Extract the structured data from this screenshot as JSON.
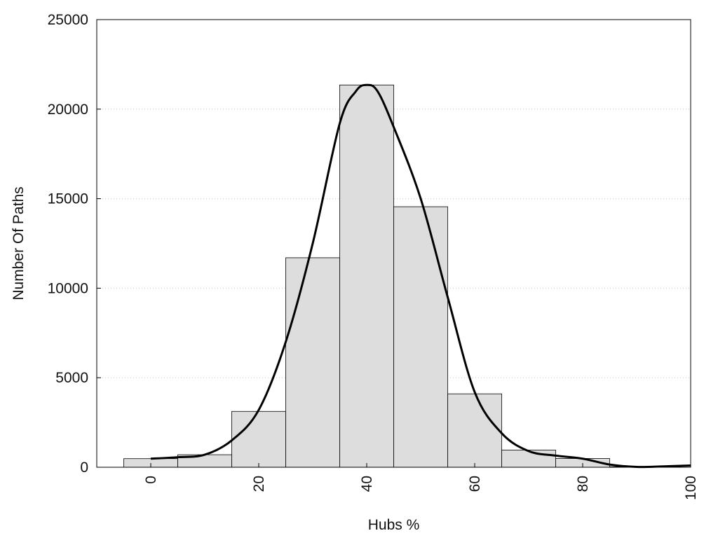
{
  "chart_data": {
    "type": "bar",
    "xlabel": "Hubs %",
    "ylabel": "Number Of Paths",
    "xlim": [
      -10,
      100
    ],
    "ylim": [
      0,
      25000
    ],
    "x_ticks": [
      0,
      20,
      40,
      60,
      80,
      100
    ],
    "y_ticks": [
      0,
      5000,
      10000,
      15000,
      20000,
      25000
    ],
    "grid": "horizontal dotted",
    "bin_width": 10,
    "bin_centers": [
      0,
      10,
      20,
      30,
      40,
      50,
      60,
      70,
      80,
      90
    ],
    "values": [
      480,
      700,
      3120,
      11700,
      21350,
      14550,
      4100,
      960,
      490,
      30
    ],
    "bar_color": "#dddddd",
    "smooth_curve": {
      "name": "",
      "x": [
        0,
        5,
        10,
        15,
        20,
        25,
        30,
        35,
        38,
        40,
        42,
        45,
        50,
        55,
        60,
        65,
        70,
        75,
        80,
        85,
        90,
        95,
        100
      ],
      "y": [
        480,
        560,
        700,
        1500,
        3200,
        7000,
        12500,
        19200,
        21000,
        21350,
        21000,
        19000,
        15000,
        9500,
        4200,
        1900,
        900,
        650,
        480,
        150,
        20,
        50,
        100
      ]
    }
  }
}
